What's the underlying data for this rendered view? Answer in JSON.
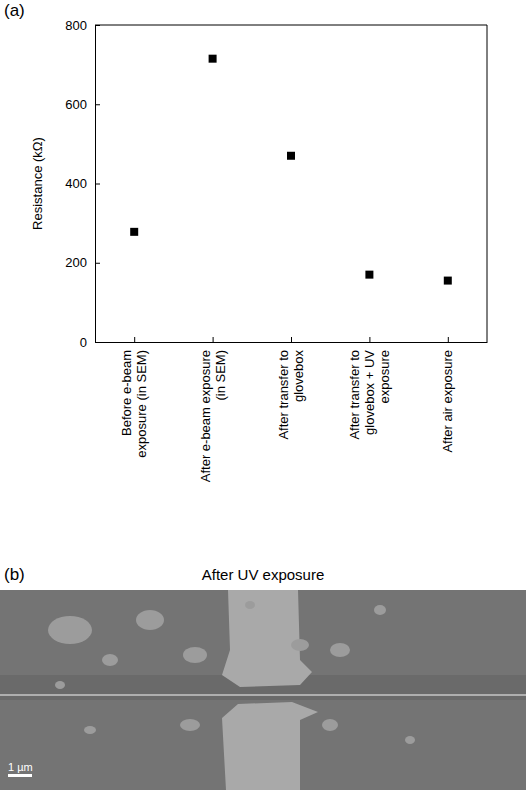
{
  "chart_data": {
    "type": "scatter",
    "panel_label": "(a)",
    "y_label": "Resistance (kΩ)",
    "categories": [
      "Before e-beam exposure (in SEM)",
      "After e-beam exposure (in SEM)",
      "After transfer to glovebox",
      "After transfer to glovebox + UV exposure",
      "After air exposure"
    ],
    "values": [
      278,
      715,
      470,
      170,
      155
    ],
    "color": "#000000",
    "marker": "square",
    "ylim": [
      0,
      800
    ],
    "yticks": [
      0,
      200,
      400,
      600,
      800
    ]
  },
  "panel_b": {
    "label": "(b)",
    "title": "After UV exposure",
    "scale_bar": "1 µm"
  }
}
